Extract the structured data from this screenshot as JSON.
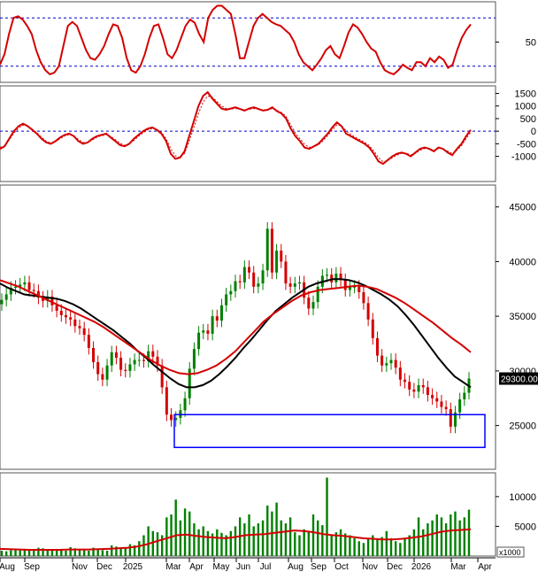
{
  "chart_data": [
    {
      "type": "line",
      "panel": "oscillator-1",
      "ylim": [
        0,
        100
      ],
      "reference_lines": [
        80,
        20
      ],
      "yticks": [
        50
      ],
      "series": [
        {
          "color": "#d40000",
          "values": [
            22,
            35,
            60,
            80,
            82,
            78,
            70,
            60,
            40,
            25,
            15,
            10,
            12,
            20,
            45,
            70,
            75,
            70,
            55,
            40,
            30,
            28,
            35,
            45,
            60,
            72,
            70,
            55,
            30,
            15,
            12,
            20,
            35,
            55,
            70,
            72,
            55,
            35,
            30,
            40,
            55,
            70,
            78,
            74,
            60,
            50,
            80,
            90,
            95,
            95,
            90,
            85,
            60,
            30,
            30,
            50,
            70,
            80,
            85,
            80,
            75,
            72,
            70,
            65,
            60,
            50,
            35,
            25,
            20,
            15,
            22,
            30,
            40,
            45,
            35,
            30,
            45,
            62,
            72,
            68,
            60,
            50,
            42,
            38,
            25,
            15,
            12,
            10,
            15,
            22,
            18,
            15,
            25,
            25,
            20,
            30,
            25,
            32,
            28,
            18,
            22,
            40,
            55,
            65,
            72
          ]
        }
      ]
    },
    {
      "type": "line",
      "panel": "oscillator-2",
      "ylim": [
        -2000,
        1800
      ],
      "reference_lines": [
        0
      ],
      "yticks": [
        1500,
        1000,
        500,
        0,
        -500,
        -1000
      ],
      "series": [
        {
          "color": "#d40000",
          "style": "solid",
          "values": [
            -700,
            -600,
            -300,
            0,
            200,
            300,
            200,
            50,
            -100,
            -300,
            -450,
            -500,
            -400,
            -250,
            -150,
            -100,
            -200,
            -400,
            -500,
            -450,
            -300,
            -200,
            -150,
            -100,
            -250,
            -400,
            -550,
            -600,
            -500,
            -300,
            -150,
            0,
            100,
            150,
            50,
            -100,
            -400,
            -900,
            -1100,
            -1050,
            -800,
            -200,
            400,
            1000,
            1400,
            1550,
            1300,
            1100,
            900,
            850,
            900,
            950,
            880,
            820,
            900,
            950,
            880,
            820,
            850,
            950,
            800,
            700,
            500,
            100,
            -200,
            -400,
            -650,
            -700,
            -600,
            -500,
            -300,
            -100,
            150,
            350,
            200,
            -100,
            -200,
            -300,
            -400,
            -500,
            -650,
            -900,
            -1200,
            -1300,
            -1150,
            -1000,
            -900,
            -850,
            -900,
            -1000,
            -850,
            -700,
            -650,
            -700,
            -800,
            -650,
            -700,
            -850,
            -950,
            -700,
            -500,
            -200,
            50
          ]
        },
        {
          "color": "#d40000",
          "style": "dashed",
          "values": [
            -650,
            -580,
            -350,
            -80,
            120,
            240,
            200,
            80,
            -60,
            -240,
            -400,
            -470,
            -420,
            -300,
            -190,
            -130,
            -180,
            -330,
            -450,
            -450,
            -350,
            -240,
            -180,
            -130,
            -210,
            -340,
            -480,
            -560,
            -520,
            -370,
            -210,
            -60,
            50,
            110,
            70,
            -50,
            -300,
            -700,
            -980,
            -1050,
            -880,
            -400,
            150,
            700,
            1150,
            1400,
            1350,
            1180,
            1000,
            900,
            880,
            900,
            880,
            850,
            870,
            900,
            880,
            850,
            850,
            900,
            830,
            740,
            580,
            250,
            -80,
            -300,
            -520,
            -640,
            -620,
            -540,
            -380,
            -180,
            50,
            250,
            220,
            20,
            -130,
            -240,
            -340,
            -440,
            -570,
            -780,
            -1050,
            -1220,
            -1170,
            -1060,
            -950,
            -880,
            -880,
            -940,
            -880,
            -760,
            -690,
            -690,
            -760,
            -690,
            -700,
            -790,
            -890,
            -760,
            -570,
            -300,
            -40
          ]
        }
      ]
    },
    {
      "type": "candlestick",
      "panel": "price",
      "ylim": [
        21000,
        47000
      ],
      "yticks": [
        45000,
        40000,
        35000,
        30000,
        25000
      ],
      "current_price_label": "29300.00",
      "close": [
        36500,
        37000,
        37600,
        37700,
        37900,
        38100,
        37400,
        37300,
        36700,
        36400,
        36800,
        36000,
        35500,
        35100,
        34900,
        34700,
        34100,
        33900,
        33300,
        32100,
        30800,
        29700,
        29200,
        30500,
        31700,
        31200,
        30100,
        30000,
        30600,
        31000,
        31000,
        30900,
        31800,
        31300,
        30500,
        28500,
        26000,
        25500,
        25700,
        26400,
        27500,
        30200,
        32000,
        33500,
        33700,
        33400,
        35000,
        34600,
        36000,
        37000,
        37300,
        38200,
        38100,
        39500,
        39000,
        37700,
        38000,
        39200,
        43000,
        39000,
        41000,
        40000,
        38000,
        37700,
        38000,
        38100,
        36700,
        35700,
        36300,
        37700,
        38700,
        38800,
        38100,
        38900,
        38300,
        37400,
        37700,
        37700,
        37200,
        36200,
        34700,
        33000,
        31400,
        30500,
        30700,
        31000,
        30300,
        29200,
        29000,
        28300,
        28100,
        28700,
        28500,
        27800,
        27500,
        27200,
        26700,
        26500,
        24900,
        26200,
        27400,
        28000,
        29300
      ],
      "ma_series": [
        {
          "name": "",
          "color": "#000000",
          "values": [
            38000,
            37600,
            37300,
            37000,
            36900,
            36800,
            36700,
            36600,
            36400,
            36100,
            35700,
            35200,
            34700,
            34200,
            33700,
            33100,
            32500,
            31800,
            31200,
            30500,
            29900,
            29300,
            28800,
            28500,
            28500,
            28700,
            29100,
            29700,
            30400,
            31200,
            32100,
            32900,
            33800,
            34700,
            35500,
            36100,
            36700,
            37200,
            37700,
            38000,
            38200,
            38400,
            38400,
            38300,
            38100,
            37800,
            37400,
            37000,
            36500,
            35900,
            35100,
            34200,
            33200,
            32200,
            31200,
            30300,
            29500,
            29000,
            28500
          ]
        },
        {
          "name": "",
          "color": "#d40000",
          "values": [
            38300,
            38000,
            37700,
            37300,
            36900,
            36500,
            36100,
            35700,
            35300,
            34900,
            34500,
            34000,
            33400,
            32800,
            32200,
            31600,
            31000,
            30500,
            30100,
            29800,
            29700,
            29800,
            30100,
            30500,
            31100,
            31800,
            32700,
            33600,
            34500,
            35200,
            35800,
            36400,
            36900,
            37200,
            37400,
            37500,
            37600,
            37700,
            37800,
            37700,
            37500,
            37100,
            36700,
            36200,
            35600,
            35000,
            34400,
            33700,
            33000,
            32400,
            31700
          ]
        }
      ],
      "annotation_box": {
        "y_range": [
          23000,
          26000
        ]
      }
    },
    {
      "type": "bar",
      "panel": "volume",
      "ylim": [
        0,
        14000
      ],
      "yticks": [
        10000,
        5000
      ],
      "unit_label": "x1000",
      "values": [
        900,
        800,
        1000,
        1100,
        950,
        1200,
        900,
        1000,
        1400,
        1300,
        1100,
        950,
        1200,
        1000,
        900,
        1500,
        1300,
        1100,
        1000,
        900,
        1400,
        1200,
        1000,
        900,
        1800,
        1600,
        1400,
        1300,
        2000,
        1800,
        2500,
        3500,
        5000,
        4200,
        4000,
        3500,
        6500,
        7000,
        9500,
        6000,
        8000,
        7500,
        5500,
        4500,
        5000,
        4200,
        3800,
        4500,
        3900,
        3500,
        4200,
        5000,
        6500,
        5500,
        7000,
        5000,
        5500,
        6000,
        8500,
        7500,
        9000,
        6000,
        5500,
        6500,
        4000,
        3500,
        4500,
        4200,
        7000,
        6000,
        5200,
        13200,
        3500,
        4000,
        4500,
        3800,
        3500,
        3000,
        2500,
        2200,
        3000,
        3500,
        2800,
        3200,
        4200,
        3000,
        2500,
        2200,
        3000,
        3500,
        4500,
        6500,
        4500,
        5500,
        6000,
        7000,
        6500,
        5500,
        7000,
        7500,
        6000,
        6500,
        7800
      ],
      "ma_values": [
        1200,
        1150,
        1100,
        1050,
        1050,
        1050,
        1050,
        1100,
        1100,
        1100,
        1150,
        1200,
        1300,
        1400,
        1600,
        2000,
        2500,
        3000,
        3500,
        3600,
        3400,
        3200,
        3100,
        3000,
        3200,
        3500,
        3600,
        3700,
        3900,
        4100,
        4300,
        4200,
        4000,
        3700,
        3500,
        3400,
        3200,
        3000,
        2900,
        2800,
        2800,
        2900,
        3100,
        3300,
        3700,
        4100,
        4300,
        4400,
        4500
      ]
    }
  ],
  "x_axis": {
    "labels": [
      "Aug",
      "Sep",
      "Nov",
      "Dec",
      "2025",
      "Mar",
      "Apr",
      "May",
      "Jun",
      "Jul",
      "Aug",
      "Sep",
      "Oct",
      "Nov",
      "Dec",
      "2026",
      "Mar",
      "Apr"
    ]
  },
  "colors": {
    "up": "#008000",
    "down": "#d40000",
    "ref_line": "#0000cc",
    "box": "#0000ff",
    "ma_long": "#d40000",
    "ma_short": "#000000"
  }
}
